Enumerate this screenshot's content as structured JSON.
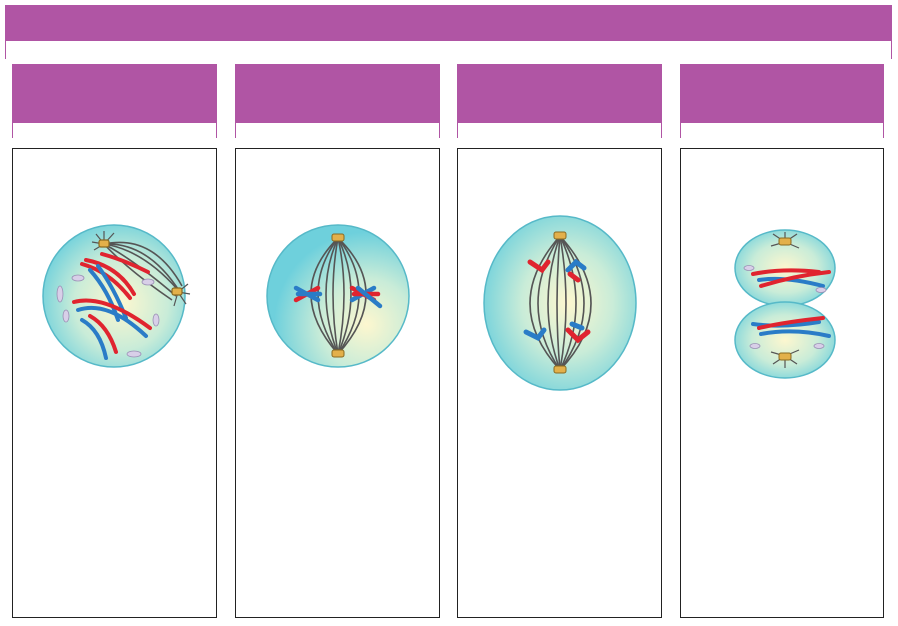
{
  "banner": {
    "title": ""
  },
  "colors": {
    "accent": "#b055a4",
    "cytoplasm_edge": "#6ed0dc",
    "cytoplasm_center": "#fdf7cf",
    "spindle": "#4a4a4a",
    "chromatid_red": "#e0242f",
    "chromatid_blue": "#2a7cc7",
    "centrosome": "#e3b04a",
    "vesicle": "#d8cfe8"
  },
  "phases": [
    {
      "id": "prophase",
      "label": ""
    },
    {
      "id": "metaphase",
      "label": ""
    },
    {
      "id": "anaphase",
      "label": ""
    },
    {
      "id": "telophase",
      "label": ""
    }
  ]
}
